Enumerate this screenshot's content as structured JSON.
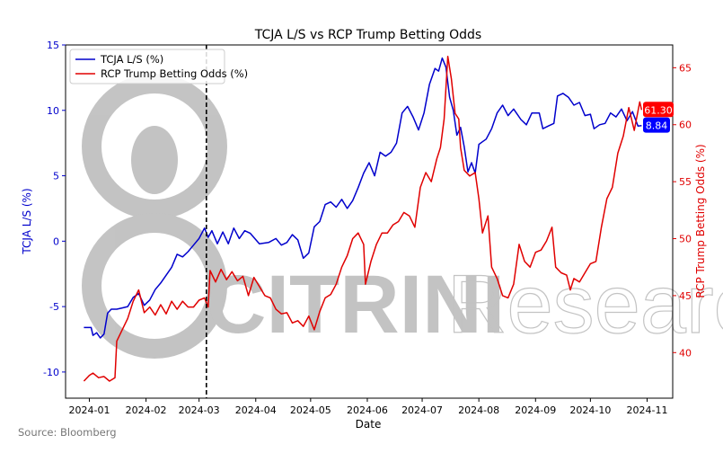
{
  "chart_data": {
    "type": "line",
    "title": "TCJA L/S vs RCP Trump Betting Odds",
    "xlabel": "Date",
    "ylabel_left": "TCJA L/S (%)",
    "ylabel_right": "RCP Trump Betting Odds (%)",
    "source": "Source: Bloomberg",
    "watermark": "CITRINI Research",
    "x_range": [
      "2023-12-19",
      "2024-11-15"
    ],
    "ylim_left": [
      -12,
      15
    ],
    "ylim_right": [
      36,
      67
    ],
    "x_ticks": [
      {
        "date": "2024-01-01",
        "label": "2024-01"
      },
      {
        "date": "2024-02-01",
        "label": "2024-02"
      },
      {
        "date": "2024-03-01",
        "label": "2024-03"
      },
      {
        "date": "2024-04-01",
        "label": "2024-04"
      },
      {
        "date": "2024-05-01",
        "label": "2024-05"
      },
      {
        "date": "2024-06-01",
        "label": "2024-06"
      },
      {
        "date": "2024-07-01",
        "label": "2024-07"
      },
      {
        "date": "2024-08-01",
        "label": "2024-08"
      },
      {
        "date": "2024-09-01",
        "label": "2024-09"
      },
      {
        "date": "2024-10-01",
        "label": "2024-10"
      },
      {
        "date": "2024-11-01",
        "label": "2024-11"
      }
    ],
    "y_ticks_left": [
      -10,
      -5,
      0,
      5,
      10,
      15
    ],
    "y_ticks_right": [
      40,
      45,
      50,
      55,
      60,
      65
    ],
    "vline": {
      "date": "2024-03-05",
      "style": "dashed"
    },
    "legend": {
      "position": "top-left",
      "entries": [
        "TCJA L/S (%)",
        "RCP Trump Betting Odds (%)"
      ]
    },
    "end_labels": {
      "left": "8.84",
      "right": "61.30"
    },
    "series": [
      {
        "name": "TCJA L/S (%)",
        "axis": "left",
        "color": "#0000cc",
        "points": [
          [
            "2023-12-29",
            -6.6
          ],
          [
            "2024-01-02",
            -6.6
          ],
          [
            "2024-01-03",
            -7.2
          ],
          [
            "2024-01-05",
            -7.0
          ],
          [
            "2024-01-07",
            -7.4
          ],
          [
            "2024-01-09",
            -7.1
          ],
          [
            "2024-01-11",
            -5.5
          ],
          [
            "2024-01-13",
            -5.2
          ],
          [
            "2024-01-16",
            -5.2
          ],
          [
            "2024-01-19",
            -5.1
          ],
          [
            "2024-01-22",
            -5.0
          ],
          [
            "2024-01-25",
            -4.3
          ],
          [
            "2024-01-28",
            -4.0
          ],
          [
            "2024-01-31",
            -4.9
          ],
          [
            "2024-02-03",
            -4.5
          ],
          [
            "2024-02-06",
            -3.7
          ],
          [
            "2024-02-09",
            -3.2
          ],
          [
            "2024-02-12",
            -2.6
          ],
          [
            "2024-02-15",
            -2.0
          ],
          [
            "2024-02-18",
            -1.0
          ],
          [
            "2024-02-21",
            -1.2
          ],
          [
            "2024-02-24",
            -0.8
          ],
          [
            "2024-02-27",
            -0.3
          ],
          [
            "2024-03-01",
            0.2
          ],
          [
            "2024-03-04",
            1.0
          ],
          [
            "2024-03-06",
            0.3
          ],
          [
            "2024-03-08",
            0.8
          ],
          [
            "2024-03-11",
            -0.2
          ],
          [
            "2024-03-14",
            0.7
          ],
          [
            "2024-03-17",
            -0.2
          ],
          [
            "2024-03-20",
            1.0
          ],
          [
            "2024-03-23",
            0.2
          ],
          [
            "2024-03-26",
            0.8
          ],
          [
            "2024-03-29",
            0.6
          ],
          [
            "2024-04-03",
            -0.2
          ],
          [
            "2024-04-08",
            -0.1
          ],
          [
            "2024-04-12",
            0.2
          ],
          [
            "2024-04-15",
            -0.3
          ],
          [
            "2024-04-18",
            -0.1
          ],
          [
            "2024-04-21",
            0.5
          ],
          [
            "2024-04-24",
            0.1
          ],
          [
            "2024-04-27",
            -1.3
          ],
          [
            "2024-04-30",
            -0.9
          ],
          [
            "2024-05-03",
            1.1
          ],
          [
            "2024-05-06",
            1.5
          ],
          [
            "2024-05-09",
            2.8
          ],
          [
            "2024-05-12",
            3.0
          ],
          [
            "2024-05-15",
            2.6
          ],
          [
            "2024-05-18",
            3.2
          ],
          [
            "2024-05-21",
            2.5
          ],
          [
            "2024-05-24",
            3.1
          ],
          [
            "2024-05-27",
            4.1
          ],
          [
            "2024-05-30",
            5.2
          ],
          [
            "2024-06-02",
            6.0
          ],
          [
            "2024-06-05",
            5.0
          ],
          [
            "2024-06-08",
            6.8
          ],
          [
            "2024-06-11",
            6.5
          ],
          [
            "2024-06-14",
            6.8
          ],
          [
            "2024-06-17",
            7.5
          ],
          [
            "2024-06-20",
            9.8
          ],
          [
            "2024-06-23",
            10.3
          ],
          [
            "2024-06-26",
            9.5
          ],
          [
            "2024-06-29",
            8.5
          ],
          [
            "2024-07-02",
            9.8
          ],
          [
            "2024-07-05",
            12.0
          ],
          [
            "2024-07-08",
            13.2
          ],
          [
            "2024-07-10",
            13.0
          ],
          [
            "2024-07-12",
            14.0
          ],
          [
            "2024-07-14",
            13.3
          ],
          [
            "2024-07-16",
            11.0
          ],
          [
            "2024-07-18",
            10.0
          ],
          [
            "2024-07-20",
            8.1
          ],
          [
            "2024-07-22",
            8.7
          ],
          [
            "2024-07-24",
            7.2
          ],
          [
            "2024-07-26",
            5.3
          ],
          [
            "2024-07-28",
            6.0
          ],
          [
            "2024-07-30",
            5.2
          ],
          [
            "2024-08-01",
            7.4
          ],
          [
            "2024-08-03",
            7.6
          ],
          [
            "2024-08-05",
            7.8
          ],
          [
            "2024-08-08",
            8.6
          ],
          [
            "2024-08-11",
            9.8
          ],
          [
            "2024-08-14",
            10.4
          ],
          [
            "2024-08-17",
            9.6
          ],
          [
            "2024-08-20",
            10.1
          ],
          [
            "2024-08-24",
            9.3
          ],
          [
            "2024-08-27",
            8.9
          ],
          [
            "2024-08-30",
            9.8
          ],
          [
            "2024-09-03",
            9.8
          ],
          [
            "2024-09-05",
            8.6
          ],
          [
            "2024-09-08",
            8.8
          ],
          [
            "2024-09-11",
            9.0
          ],
          [
            "2024-09-13",
            11.1
          ],
          [
            "2024-09-16",
            11.3
          ],
          [
            "2024-09-19",
            11.0
          ],
          [
            "2024-09-22",
            10.4
          ],
          [
            "2024-09-25",
            10.6
          ],
          [
            "2024-09-28",
            9.6
          ],
          [
            "2024-10-01",
            9.7
          ],
          [
            "2024-10-03",
            8.6
          ],
          [
            "2024-10-06",
            8.9
          ],
          [
            "2024-10-09",
            9.0
          ],
          [
            "2024-10-12",
            9.8
          ],
          [
            "2024-10-15",
            9.5
          ],
          [
            "2024-10-18",
            10.1
          ],
          [
            "2024-10-21",
            9.2
          ],
          [
            "2024-10-24",
            9.9
          ],
          [
            "2024-10-27",
            8.8
          ],
          [
            "2024-10-29",
            8.84
          ]
        ]
      },
      {
        "name": "RCP Trump Betting Odds (%)",
        "axis": "right",
        "color": "#e00000",
        "points": [
          [
            "2023-12-29",
            37.5
          ],
          [
            "2024-01-01",
            38.0
          ],
          [
            "2024-01-03",
            38.2
          ],
          [
            "2024-01-06",
            37.8
          ],
          [
            "2024-01-09",
            37.9
          ],
          [
            "2024-01-12",
            37.5
          ],
          [
            "2024-01-15",
            37.8
          ],
          [
            "2024-01-16",
            41.0
          ],
          [
            "2024-01-19",
            42.0
          ],
          [
            "2024-01-22",
            43.0
          ],
          [
            "2024-01-25",
            44.5
          ],
          [
            "2024-01-28",
            45.5
          ],
          [
            "2024-01-31",
            43.5
          ],
          [
            "2024-02-03",
            44.0
          ],
          [
            "2024-02-06",
            43.3
          ],
          [
            "2024-02-09",
            44.2
          ],
          [
            "2024-02-12",
            43.4
          ],
          [
            "2024-02-15",
            44.5
          ],
          [
            "2024-02-18",
            43.8
          ],
          [
            "2024-02-21",
            44.5
          ],
          [
            "2024-02-24",
            44.0
          ],
          [
            "2024-02-27",
            44.0
          ],
          [
            "2024-03-01",
            44.6
          ],
          [
            "2024-03-04",
            44.8
          ],
          [
            "2024-03-06",
            44.0
          ],
          [
            "2024-03-07",
            47.2
          ],
          [
            "2024-03-10",
            46.2
          ],
          [
            "2024-03-13",
            47.3
          ],
          [
            "2024-03-16",
            46.4
          ],
          [
            "2024-03-19",
            47.1
          ],
          [
            "2024-03-22",
            46.3
          ],
          [
            "2024-03-25",
            46.7
          ],
          [
            "2024-03-28",
            45.0
          ],
          [
            "2024-03-31",
            46.6
          ],
          [
            "2024-04-03",
            45.8
          ],
          [
            "2024-04-06",
            45.0
          ],
          [
            "2024-04-09",
            44.8
          ],
          [
            "2024-04-12",
            43.8
          ],
          [
            "2024-04-15",
            43.4
          ],
          [
            "2024-04-18",
            43.5
          ],
          [
            "2024-04-21",
            42.6
          ],
          [
            "2024-04-24",
            42.8
          ],
          [
            "2024-04-27",
            42.3
          ],
          [
            "2024-04-30",
            43.2
          ],
          [
            "2024-05-03",
            42.0
          ],
          [
            "2024-05-06",
            43.6
          ],
          [
            "2024-05-09",
            44.8
          ],
          [
            "2024-05-12",
            45.1
          ],
          [
            "2024-05-15",
            46.0
          ],
          [
            "2024-05-18",
            47.5
          ],
          [
            "2024-05-21",
            48.5
          ],
          [
            "2024-05-24",
            50.0
          ],
          [
            "2024-05-27",
            50.5
          ],
          [
            "2024-05-30",
            49.5
          ],
          [
            "2024-05-31",
            46.0
          ],
          [
            "2024-06-03",
            48.0
          ],
          [
            "2024-06-06",
            49.5
          ],
          [
            "2024-06-09",
            50.5
          ],
          [
            "2024-06-12",
            50.5
          ],
          [
            "2024-06-15",
            51.2
          ],
          [
            "2024-06-18",
            51.5
          ],
          [
            "2024-06-21",
            52.3
          ],
          [
            "2024-06-24",
            52.0
          ],
          [
            "2024-06-27",
            51.0
          ],
          [
            "2024-06-30",
            54.5
          ],
          [
            "2024-07-03",
            55.8
          ],
          [
            "2024-07-06",
            55.0
          ],
          [
            "2024-07-09",
            57.0
          ],
          [
            "2024-07-11",
            58.0
          ],
          [
            "2024-07-13",
            60.5
          ],
          [
            "2024-07-15",
            66.0
          ],
          [
            "2024-07-17",
            64.0
          ],
          [
            "2024-07-19",
            61.0
          ],
          [
            "2024-07-21",
            60.5
          ],
          [
            "2024-07-22",
            58.0
          ],
          [
            "2024-07-24",
            56.0
          ],
          [
            "2024-07-27",
            55.5
          ],
          [
            "2024-07-30",
            55.8
          ],
          [
            "2024-08-01",
            53.5
          ],
          [
            "2024-08-03",
            50.5
          ],
          [
            "2024-08-06",
            52.0
          ],
          [
            "2024-08-08",
            47.5
          ],
          [
            "2024-08-11",
            46.5
          ],
          [
            "2024-08-14",
            45.0
          ],
          [
            "2024-08-17",
            44.8
          ],
          [
            "2024-08-20",
            46.0
          ],
          [
            "2024-08-23",
            49.5
          ],
          [
            "2024-08-26",
            48.0
          ],
          [
            "2024-08-29",
            47.5
          ],
          [
            "2024-09-01",
            48.8
          ],
          [
            "2024-09-04",
            49.0
          ],
          [
            "2024-09-07",
            49.8
          ],
          [
            "2024-09-10",
            51.0
          ],
          [
            "2024-09-12",
            47.5
          ],
          [
            "2024-09-15",
            47.0
          ],
          [
            "2024-09-18",
            46.8
          ],
          [
            "2024-09-20",
            45.5
          ],
          [
            "2024-09-22",
            46.5
          ],
          [
            "2024-09-25",
            46.2
          ],
          [
            "2024-09-28",
            47.0
          ],
          [
            "2024-10-01",
            47.8
          ],
          [
            "2024-10-04",
            48.0
          ],
          [
            "2024-10-07",
            51.0
          ],
          [
            "2024-10-10",
            53.5
          ],
          [
            "2024-10-13",
            54.5
          ],
          [
            "2024-10-16",
            57.5
          ],
          [
            "2024-10-19",
            59.0
          ],
          [
            "2024-10-22",
            61.5
          ],
          [
            "2024-10-25",
            59.5
          ],
          [
            "2024-10-28",
            62.0
          ],
          [
            "2024-10-29",
            61.3
          ]
        ]
      }
    ]
  }
}
